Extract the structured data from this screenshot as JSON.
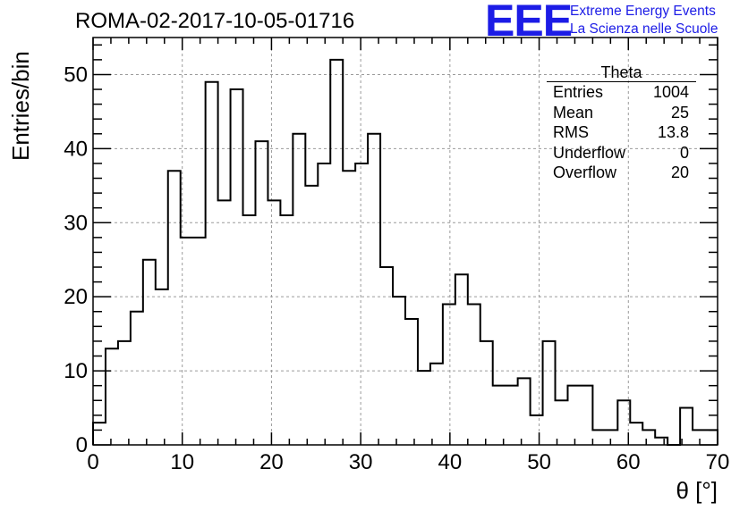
{
  "header": {
    "run_title": "ROMA-02-2017-10-05-01716",
    "logo_mark": "EEE",
    "logo_line1": "Extreme Energy Events",
    "logo_line2": "La Scienza nelle Scuole",
    "logo_color": "#1c1ce6"
  },
  "stats_box": {
    "title": "Theta",
    "rows": [
      {
        "label": "Entries",
        "value": "1004"
      },
      {
        "label": "Mean",
        "value": "25"
      },
      {
        "label": "RMS",
        "value": "13.8"
      },
      {
        "label": "Underflow",
        "value": "0"
      },
      {
        "label": "Overflow",
        "value": "20"
      }
    ]
  },
  "chart_data": {
    "type": "histogram",
    "bin_width": 1.4,
    "bin_start": 0,
    "values": [
      3,
      13,
      14,
      18,
      25,
      21,
      37,
      28,
      28,
      49,
      33,
      48,
      31,
      41,
      33,
      31,
      42,
      35,
      38,
      52,
      37,
      38,
      42,
      24,
      20,
      17,
      10,
      11,
      19,
      23,
      19,
      14,
      8,
      8,
      9,
      4,
      14,
      6,
      8,
      8,
      2,
      2,
      6,
      3,
      2,
      1,
      0,
      5,
      2,
      2
    ],
    "xlabel": "θ [°]",
    "ylabel": "Entries/bin",
    "xlim": [
      0,
      70
    ],
    "ylim": [
      0,
      55
    ],
    "xticks": [
      0,
      10,
      20,
      30,
      40,
      50,
      60,
      70
    ],
    "yticks": [
      0,
      10,
      20,
      30,
      40,
      50
    ],
    "grid": true,
    "line_color": "#000000"
  }
}
